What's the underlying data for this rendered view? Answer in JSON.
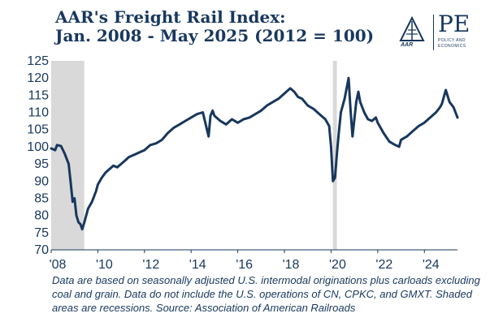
{
  "header": {
    "title_line1": "AAR's Freight Rail Index:",
    "title_line2": "Jan. 2008 - May 2025 (2012 = 100)"
  },
  "logo": {
    "mark_text": "AAR",
    "pe_text": "PE",
    "sub_text": "POLICY AND ECONOMICS"
  },
  "colors": {
    "line": "#17375e",
    "recession": "#d9d9d9",
    "text": "#17375e"
  },
  "chart_data": {
    "type": "line",
    "title": "AAR's Freight Rail Index: Jan. 2008 - May 2025 (2012 = 100)",
    "xlabel": "",
    "ylabel": "",
    "xlim": [
      2008.0,
      2025.42
    ],
    "ylim": [
      70,
      125
    ],
    "yticks": [
      70,
      75,
      80,
      85,
      90,
      95,
      100,
      105,
      110,
      115,
      120,
      125
    ],
    "xticks": [
      {
        "value": 2008.0,
        "label": "'08"
      },
      {
        "value": 2010.0,
        "label": "'10"
      },
      {
        "value": 2012.0,
        "label": "'12"
      },
      {
        "value": 2014.0,
        "label": "'14"
      },
      {
        "value": 2016.0,
        "label": "'16"
      },
      {
        "value": 2018.0,
        "label": "'18"
      },
      {
        "value": 2020.0,
        "label": "'20"
      },
      {
        "value": 2022.0,
        "label": "'22"
      },
      {
        "value": 2024.0,
        "label": "'24"
      }
    ],
    "recessions": [
      {
        "start": 2008.0,
        "end": 2009.42
      },
      {
        "start": 2020.08,
        "end": 2020.25
      }
    ],
    "series": [
      {
        "name": "Freight Rail Index",
        "x": [
          2008.0,
          2008.17,
          2008.25,
          2008.42,
          2008.58,
          2008.75,
          2008.83,
          2008.92,
          2009.0,
          2009.08,
          2009.17,
          2009.25,
          2009.33,
          2009.42,
          2009.5,
          2009.58,
          2009.75,
          2009.92,
          2010.0,
          2010.17,
          2010.33,
          2010.5,
          2010.67,
          2010.83,
          2011.0,
          2011.17,
          2011.33,
          2011.5,
          2011.67,
          2011.83,
          2012.0,
          2012.25,
          2012.5,
          2012.75,
          2013.0,
          2013.25,
          2013.5,
          2013.75,
          2014.0,
          2014.25,
          2014.5,
          2014.75,
          2014.83,
          2014.92,
          2015.0,
          2015.25,
          2015.5,
          2015.75,
          2016.0,
          2016.25,
          2016.5,
          2016.75,
          2017.0,
          2017.25,
          2017.5,
          2017.75,
          2018.0,
          2018.25,
          2018.42,
          2018.58,
          2018.75,
          2019.0,
          2019.25,
          2019.5,
          2019.75,
          2019.92,
          2020.0,
          2020.08,
          2020.17,
          2020.25,
          2020.33,
          2020.42,
          2020.58,
          2020.75,
          2020.83,
          2020.92,
          2021.0,
          2021.08,
          2021.17,
          2021.25,
          2021.42,
          2021.58,
          2021.75,
          2021.92,
          2022.0,
          2022.25,
          2022.5,
          2022.75,
          2022.92,
          2023.0,
          2023.25,
          2023.5,
          2023.75,
          2024.0,
          2024.25,
          2024.5,
          2024.67,
          2024.75,
          2024.92,
          2025.08,
          2025.25,
          2025.42
        ],
        "values": [
          99.5,
          99.0,
          100.5,
          100.2,
          98.0,
          95.0,
          90.0,
          84.0,
          85.0,
          80.0,
          78.0,
          77.5,
          76.0,
          78.0,
          80.0,
          82.0,
          84.0,
          87.0,
          89.0,
          91.0,
          92.5,
          93.5,
          94.5,
          94.0,
          95.0,
          96.0,
          97.0,
          97.5,
          98.0,
          98.5,
          99.0,
          100.5,
          101.0,
          102.0,
          104.0,
          105.5,
          106.5,
          107.5,
          108.5,
          109.5,
          110.0,
          103.0,
          109.0,
          110.5,
          109.0,
          107.5,
          106.5,
          108.0,
          107.0,
          108.0,
          108.5,
          109.5,
          110.5,
          112.0,
          113.0,
          114.0,
          115.5,
          117.0,
          116.0,
          114.5,
          114.0,
          112.0,
          111.0,
          109.5,
          108.0,
          106.0,
          100.0,
          90.0,
          91.0,
          98.0,
          104.0,
          110.0,
          114.0,
          120.0,
          111.0,
          103.0,
          108.0,
          113.0,
          116.0,
          113.0,
          110.0,
          108.0,
          107.5,
          108.5,
          107.0,
          104.0,
          101.5,
          100.5,
          100.0,
          102.0,
          103.0,
          104.5,
          106.0,
          107.0,
          108.5,
          110.0,
          111.5,
          112.5,
          116.5,
          113.0,
          111.5,
          108.5
        ]
      }
    ]
  },
  "footnote": "Data are based on seasonally adjusted U.S. intermodal originations plus carloads excluding coal and grain. Data do not include the U.S. operations of CN, CPKC, and GMXT. Shaded areas are recessions. Source: Association of American Railroads"
}
